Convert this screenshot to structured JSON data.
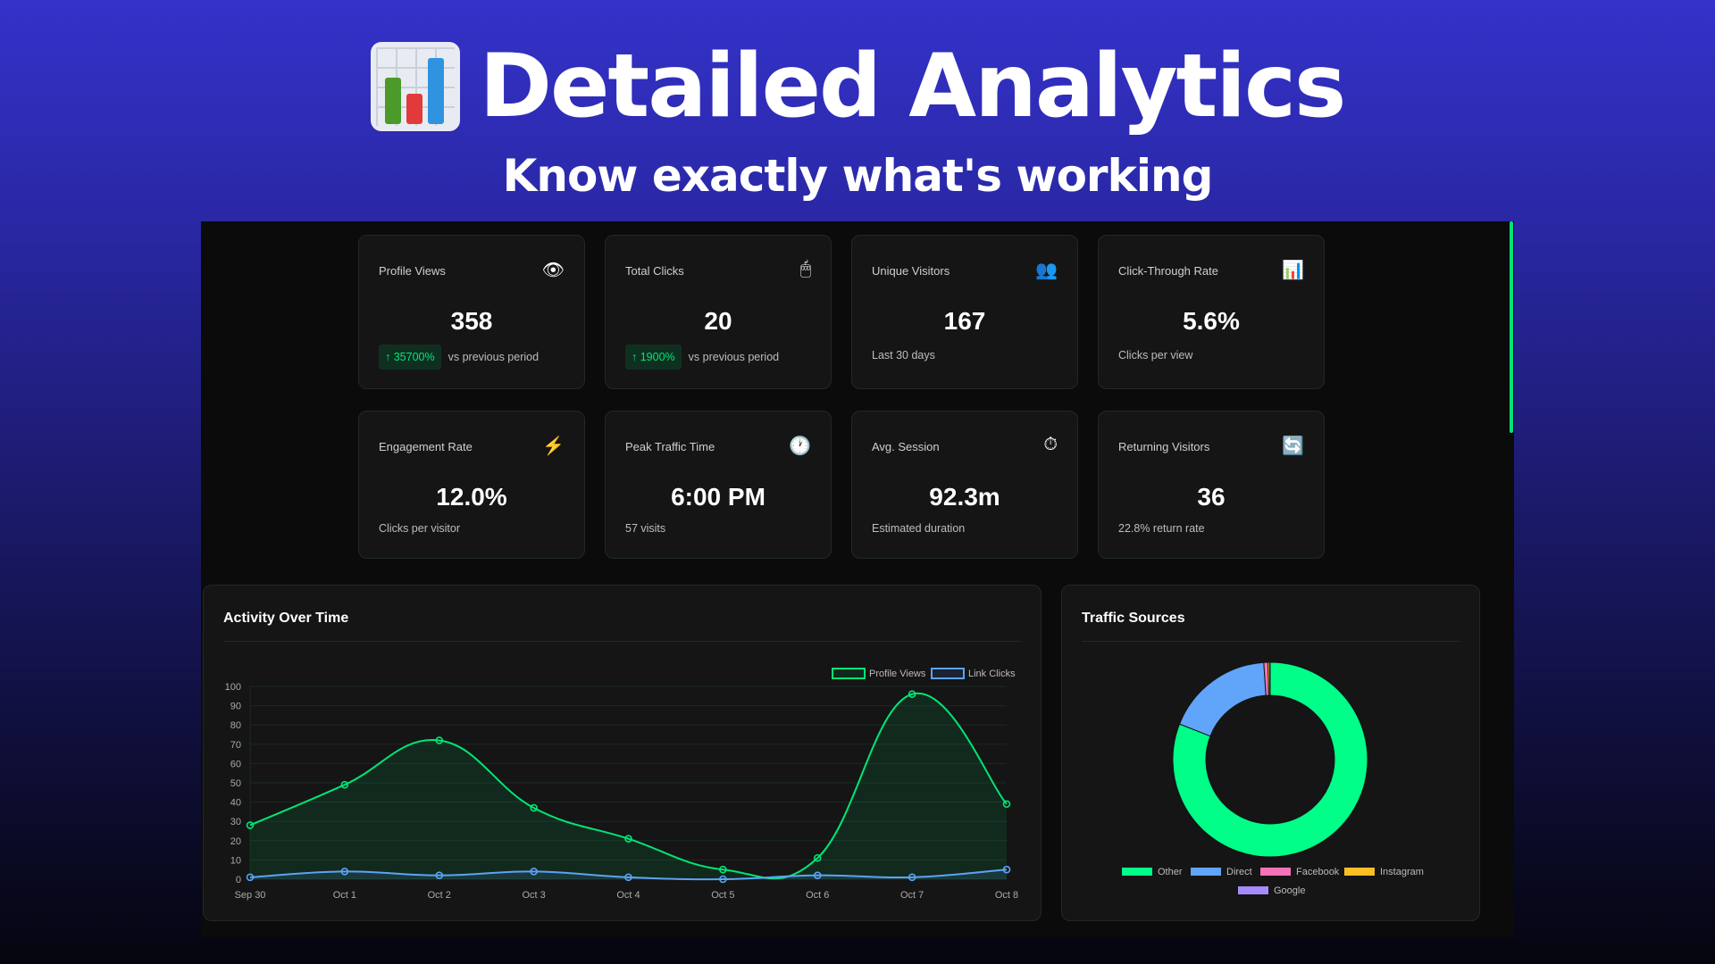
{
  "header": {
    "title": "Detailed Analytics",
    "subtitle": "Know exactly what's working",
    "logo_icon": "bar-chart-icon"
  },
  "cards": [
    {
      "label": "Profile Views",
      "icon": "eye-icon",
      "glyph": "👁",
      "value": "358",
      "badge": "↑ 35700%",
      "sub": "vs previous period"
    },
    {
      "label": "Total Clicks",
      "icon": "mouse-icon",
      "glyph": "🖱",
      "value": "20",
      "badge": "↑ 1900%",
      "sub": "vs previous period"
    },
    {
      "label": "Unique Visitors",
      "icon": "users-icon",
      "glyph": "👥",
      "value": "167",
      "sub": "Last 30 days"
    },
    {
      "label": "Click-Through Rate",
      "icon": "chart-icon",
      "glyph": "📊",
      "value": "5.6%",
      "sub": "Clicks per view"
    },
    {
      "label": "Engagement Rate",
      "icon": "lightning-icon",
      "glyph": "⚡",
      "value": "12.0%",
      "sub": "Clicks per visitor"
    },
    {
      "label": "Peak Traffic Time",
      "icon": "clock-icon",
      "glyph": "🕐",
      "value": "6:00 PM",
      "sub": "57 visits"
    },
    {
      "label": "Avg. Session",
      "icon": "stopwatch-icon",
      "glyph": "⏱",
      "value": "92.3m",
      "sub": "Estimated duration"
    },
    {
      "label": "Returning Visitors",
      "icon": "refresh-icon",
      "glyph": "🔄",
      "value": "36",
      "sub": "22.8% return rate"
    }
  ],
  "chart_data": [
    {
      "type": "line",
      "title": "Activity Over Time",
      "categories": [
        "Sep 30",
        "Oct 1",
        "Oct 2",
        "Oct 3",
        "Oct 4",
        "Oct 5",
        "Oct 6",
        "Oct 7",
        "Oct 8"
      ],
      "series": [
        {
          "name": "Profile Views",
          "color": "#00e676",
          "values": [
            28,
            49,
            72,
            37,
            21,
            5,
            11,
            96,
            39
          ]
        },
        {
          "name": "Link Clicks",
          "color": "#5ba4f5",
          "values": [
            1,
            4,
            2,
            4,
            1,
            0,
            2,
            1,
            5
          ]
        }
      ],
      "ylim": [
        0,
        100
      ],
      "yticks": [
        0,
        10,
        20,
        30,
        40,
        50,
        60,
        70,
        80,
        90,
        100
      ],
      "legend": "top-right",
      "grid": true
    },
    {
      "type": "pie",
      "title": "Traffic Sources",
      "categories": [
        "Other",
        "Direct",
        "Facebook",
        "Instagram",
        "Google"
      ],
      "values": [
        81,
        18,
        0.7,
        0.3,
        0.05
      ],
      "colors": [
        "#00ff88",
        "#60a5fa",
        "#f472b6",
        "#fbbf24",
        "#a78bfa"
      ],
      "legend": "bottom"
    }
  ]
}
